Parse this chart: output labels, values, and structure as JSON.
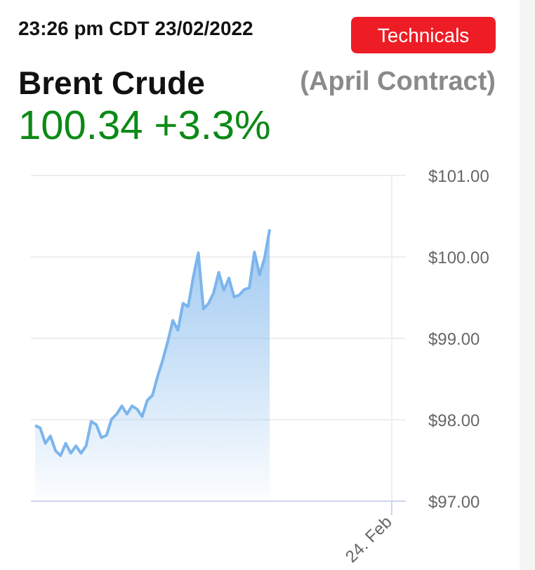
{
  "chart_data": {
    "type": "area",
    "title": "Brent Crude",
    "subtitle": "(April Contract)",
    "annotations": [
      "23:26 pm CDT 23/02/2022",
      "100.34 +3.3%",
      "Technicals",
      "24. Feb"
    ],
    "categories": [
      null,
      null,
      null,
      null,
      null,
      null,
      null,
      null,
      null,
      null,
      null,
      null,
      null,
      null,
      null,
      null,
      null,
      null,
      null,
      null,
      null,
      null,
      null,
      null,
      null,
      null,
      null,
      null,
      null,
      null,
      null,
      null,
      null,
      null,
      null,
      null,
      null,
      null,
      null,
      null,
      null,
      null,
      null,
      null,
      null,
      null,
      null
    ],
    "series": [
      {
        "color": "#7cb5ec",
        "values": [
          97.93,
          97.9,
          97.71,
          97.8,
          97.62,
          97.56,
          97.71,
          97.59,
          97.68,
          97.59,
          97.68,
          97.98,
          97.94,
          97.78,
          97.81,
          98.01,
          98.07,
          98.17,
          98.07,
          98.17,
          98.13,
          98.04,
          98.24,
          98.3,
          98.53,
          98.73,
          98.96,
          99.22,
          99.1,
          99.43,
          99.39,
          99.75,
          100.05,
          99.36,
          99.43,
          99.56,
          99.81,
          99.59,
          99.74,
          99.51,
          99.53,
          99.6,
          99.62,
          100.06,
          99.78,
          99.99,
          100.34
        ]
      }
    ],
    "ylim": [
      97,
      101
    ],
    "yticks": [
      {
        "value": 97,
        "label": "$97.00"
      },
      {
        "value": 98,
        "label": "$98.00"
      },
      {
        "value": 99,
        "label": "$99.00"
      },
      {
        "value": 100,
        "label": "$100.00"
      },
      {
        "value": 101,
        "label": "$101.00"
      }
    ],
    "grid": true,
    "legend": false
  }
}
